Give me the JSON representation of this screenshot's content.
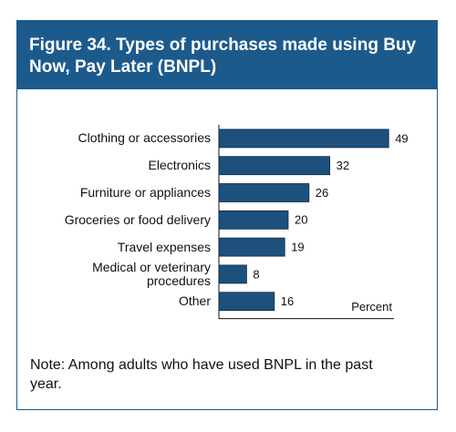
{
  "chart_data": {
    "type": "bar",
    "orientation": "horizontal",
    "title": "Figure 34. Types of purchases made using Buy Now, Pay Later (BNPL)",
    "categories": [
      "Clothing or accessories",
      "Electronics",
      "Furniture or appliances",
      "Groceries or food delivery",
      "Travel expenses",
      "Medical or veterinary procedures",
      "Other"
    ],
    "values": [
      49,
      32,
      26,
      20,
      19,
      8,
      16
    ],
    "color": "#1d507c",
    "xlim": [
      0,
      50
    ],
    "x_label": "Percent",
    "note": "Note: Among adults who have used BNPL in the past year."
  }
}
